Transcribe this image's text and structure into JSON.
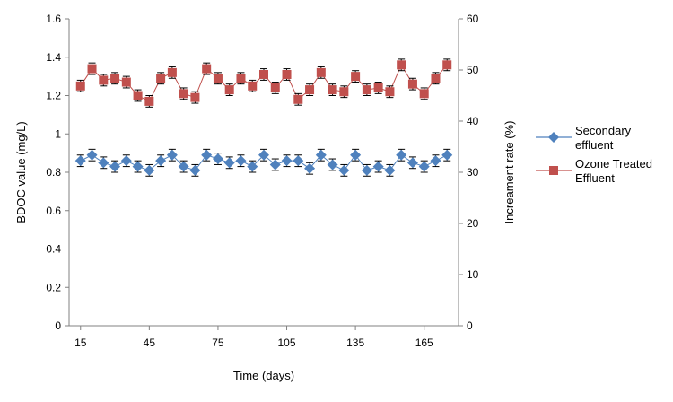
{
  "chart_data": {
    "type": "line",
    "title": "",
    "xlabel": "Time (days)",
    "ylabel": "BDOC value (mg/L)",
    "y2label": "Increament rate (%)",
    "xlim": [
      10,
      180
    ],
    "ylim": [
      0,
      1.6
    ],
    "y2lim": [
      0,
      60
    ],
    "x_ticks": [
      "15",
      "45",
      "75",
      "105",
      "135",
      "165"
    ],
    "y_ticks": [
      "0",
      "0.2",
      "0.4",
      "0.6",
      "0.8",
      "1",
      "1.2",
      "1.4",
      "1.6"
    ],
    "y2_ticks": [
      "0",
      "10",
      "20",
      "30",
      "40",
      "50",
      "60"
    ],
    "x": [
      15,
      20,
      25,
      30,
      35,
      40,
      45,
      50,
      55,
      60,
      65,
      70,
      75,
      80,
      85,
      90,
      95,
      100,
      105,
      110,
      115,
      120,
      125,
      130,
      135,
      140,
      145,
      150,
      155,
      160,
      165,
      170,
      175
    ],
    "series": [
      {
        "name": "Secondary effluent",
        "marker": "diamond",
        "color": "#4f81bd",
        "error": 0.03,
        "values": [
          0.86,
          0.89,
          0.85,
          0.83,
          0.86,
          0.83,
          0.81,
          0.86,
          0.89,
          0.83,
          0.81,
          0.89,
          0.87,
          0.85,
          0.86,
          0.83,
          0.89,
          0.84,
          0.86,
          0.86,
          0.82,
          0.89,
          0.84,
          0.81,
          0.89,
          0.81,
          0.83,
          0.81,
          0.89,
          0.85,
          0.83,
          0.86,
          0.89
        ]
      },
      {
        "name": "Ozone Treated Effluent",
        "marker": "square",
        "color": "#c0504d",
        "error": 0.03,
        "values": [
          1.25,
          1.34,
          1.28,
          1.29,
          1.27,
          1.2,
          1.17,
          1.29,
          1.32,
          1.21,
          1.19,
          1.34,
          1.29,
          1.23,
          1.29,
          1.25,
          1.31,
          1.24,
          1.31,
          1.18,
          1.23,
          1.32,
          1.23,
          1.22,
          1.3,
          1.23,
          1.24,
          1.22,
          1.36,
          1.26,
          1.21,
          1.29,
          1.36
        ]
      }
    ],
    "legend": {
      "position": "right",
      "entries": [
        "Secondary effluent",
        "Ozone Treated Effluent"
      ]
    }
  },
  "colors": {
    "axis": "#808080",
    "secondary": "#4f81bd",
    "ozone": "#c0504d"
  }
}
